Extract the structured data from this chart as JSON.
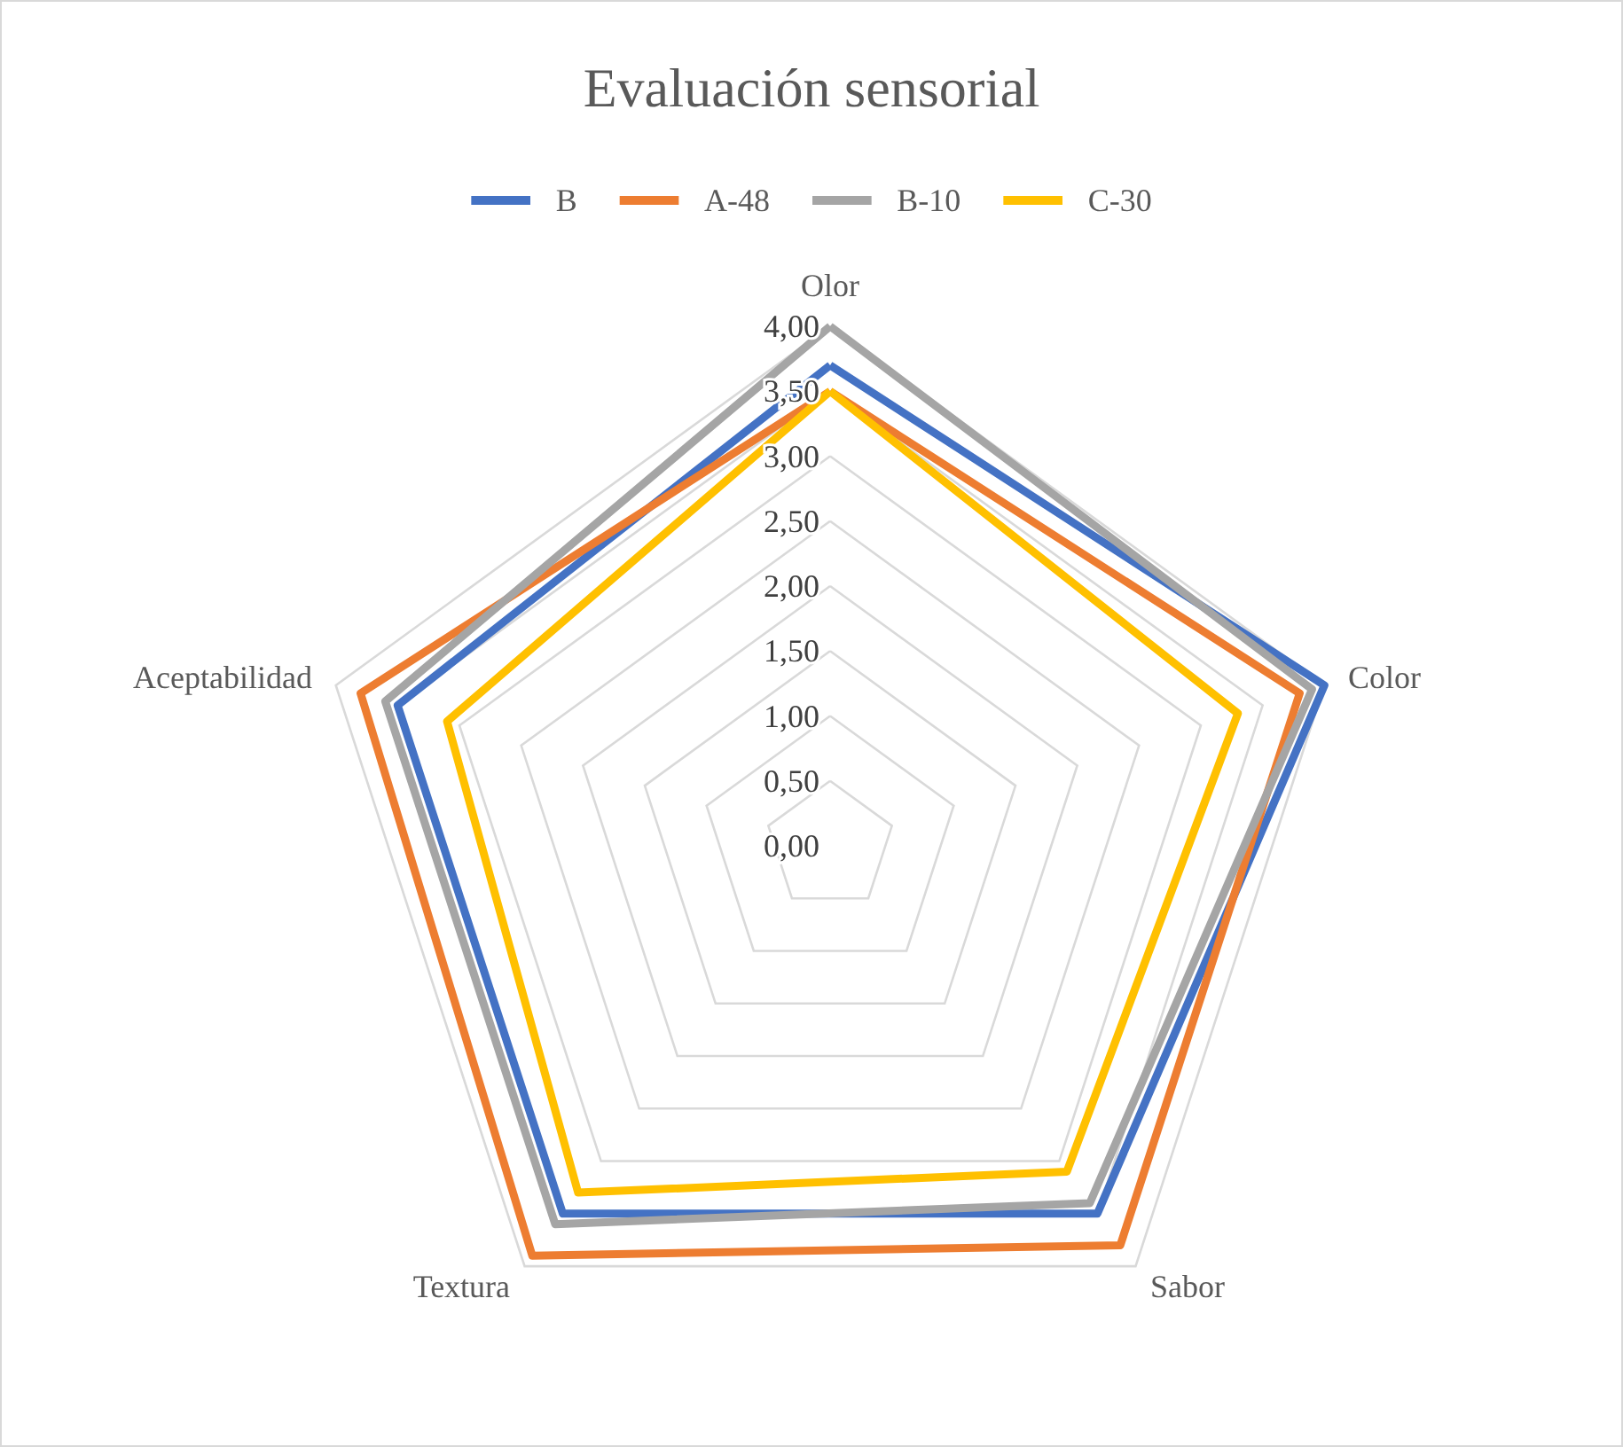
{
  "chart_data": {
    "type": "radar",
    "title": "Evaluación sensorial",
    "categories": [
      "Olor",
      "Color",
      "Sabor",
      "Textura",
      "Aceptabilidad"
    ],
    "series": [
      {
        "name": "B",
        "color": "#4472c4",
        "values": [
          3.7,
          4.0,
          3.5,
          3.5,
          3.5
        ]
      },
      {
        "name": "A-48",
        "color": "#ed7d31",
        "values": [
          3.5,
          3.8,
          3.8,
          3.9,
          3.8
        ]
      },
      {
        "name": "B-10",
        "color": "#a5a5a5",
        "values": [
          4.0,
          3.9,
          3.4,
          3.6,
          3.6
        ]
      },
      {
        "name": "C-30",
        "color": "#ffc000",
        "values": [
          3.5,
          3.3,
          3.1,
          3.3,
          3.1
        ]
      }
    ],
    "ylim": [
      0,
      4
    ],
    "yticks": [
      {
        "value": 0,
        "label": "0,00"
      },
      {
        "value": 0.5,
        "label": "0,50"
      },
      {
        "value": 1,
        "label": "1,00"
      },
      {
        "value": 1.5,
        "label": "1,50"
      },
      {
        "value": 2,
        "label": "2,00"
      },
      {
        "value": 2.5,
        "label": "2,50"
      },
      {
        "value": 3,
        "label": "3,00"
      },
      {
        "value": 3.5,
        "label": "3,50"
      },
      {
        "value": 4,
        "label": "4,00"
      }
    ],
    "legend": "top",
    "marker": "none",
    "grid": true
  }
}
